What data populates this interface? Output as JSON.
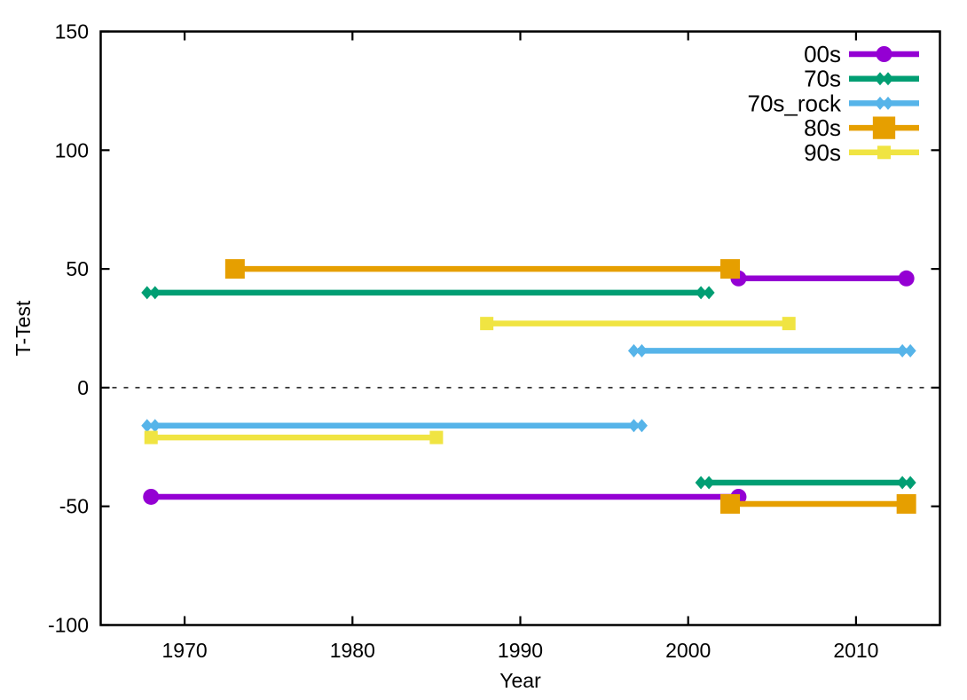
{
  "chart_data": {
    "type": "line",
    "title": "",
    "xlabel": "Year",
    "ylabel": "T-Test",
    "xlim": [
      1965,
      2015
    ],
    "ylim": [
      -100,
      150
    ],
    "x_ticks": [
      1970,
      1980,
      1990,
      2000,
      2010
    ],
    "y_ticks": [
      -100,
      -50,
      0,
      50,
      100,
      150
    ],
    "grid": false,
    "zero_line": {
      "y": 0,
      "style": "dashed",
      "color": "#333333"
    },
    "legend_position": "top-right",
    "series": [
      {
        "name": "00s",
        "color": "#9400d3",
        "marker": "circle",
        "segments": [
          {
            "x": [
              1968,
              2003
            ],
            "y": -46
          },
          {
            "x": [
              2003,
              2013
            ],
            "y": 46
          }
        ]
      },
      {
        "name": "70s",
        "color": "#009e73",
        "marker": "double-diamond",
        "segments": [
          {
            "x": [
              1968,
              2001
            ],
            "y": 40
          },
          {
            "x": [
              2001,
              2013
            ],
            "y": -40
          }
        ]
      },
      {
        "name": "70s_rock",
        "color": "#56b4e9",
        "marker": "double-diamond",
        "segments": [
          {
            "x": [
              1968,
              1997
            ],
            "y": -16
          },
          {
            "x": [
              1997,
              2013
            ],
            "y": 15.5
          }
        ]
      },
      {
        "name": "80s",
        "color": "#e69f00",
        "marker": "square",
        "segments": [
          {
            "x": [
              1973,
              2002.5
            ],
            "y": 50
          },
          {
            "x": [
              2002.5,
              2013
            ],
            "y": -49
          }
        ]
      },
      {
        "name": "90s",
        "color": "#f0e442",
        "marker": "small-square",
        "segments": [
          {
            "x": [
              1968,
              1985
            ],
            "y": -21
          },
          {
            "x": [
              1988,
              2006
            ],
            "y": 27
          }
        ]
      }
    ]
  }
}
